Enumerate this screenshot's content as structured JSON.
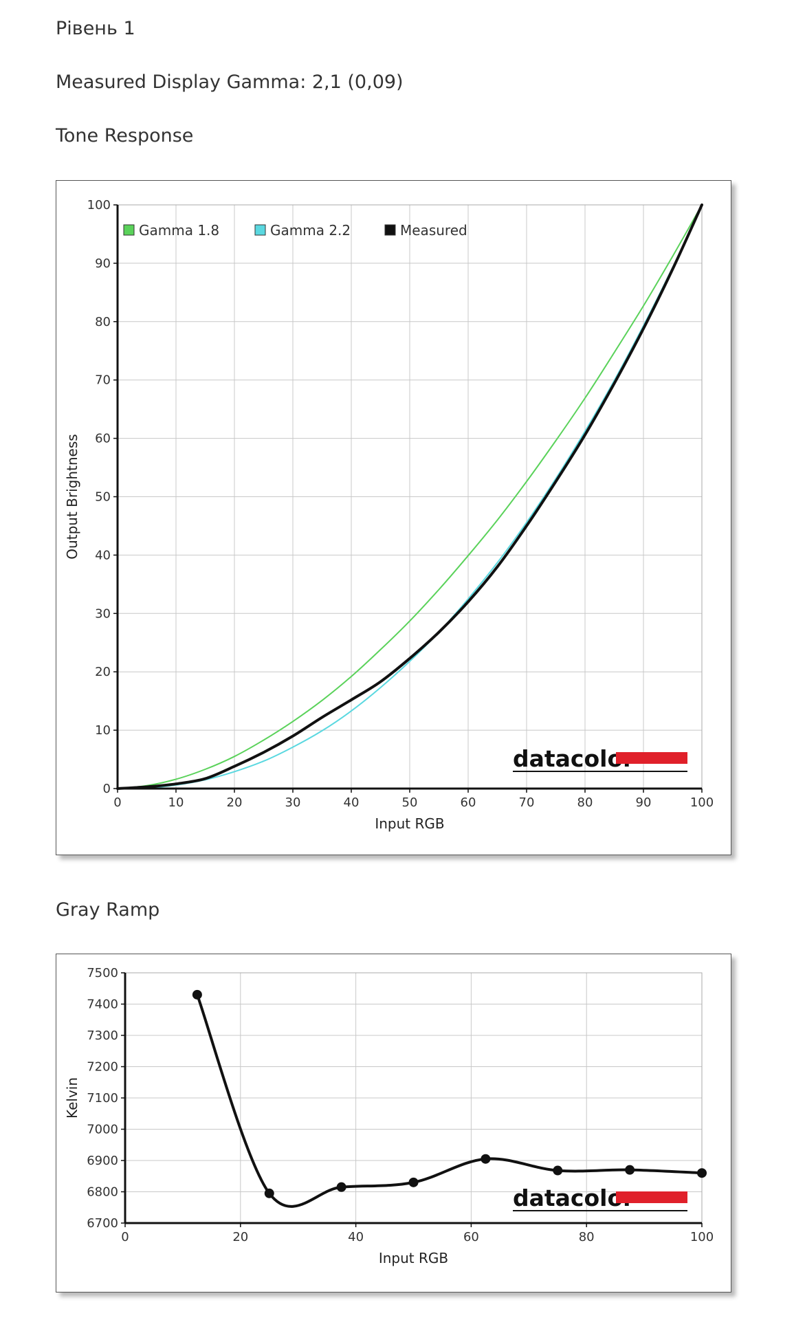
{
  "page": {
    "level_title": "Рівень 1",
    "gamma_text": "Measured Display Gamma: 2,1 (0,09)",
    "tone_heading": "Tone Response",
    "gray_heading": "Gray Ramp"
  },
  "logo": {
    "text": "datacolor",
    "bar_color": "#e0202a"
  },
  "chart_data": [
    {
      "type": "line",
      "xlabel": "Input RGB",
      "ylabel": "Output Brightness",
      "xlim": [
        0,
        100
      ],
      "ylim": [
        0,
        100
      ],
      "x_ticks": [
        0,
        10,
        20,
        30,
        40,
        50,
        60,
        70,
        80,
        90,
        100
      ],
      "y_ticks": [
        0,
        10,
        20,
        30,
        40,
        50,
        60,
        70,
        80,
        90,
        100
      ],
      "grid": true,
      "legend_position": "top-left",
      "series": [
        {
          "name": "Gamma 1.8",
          "color": "#5ad25a",
          "x": [
            0,
            5,
            10,
            15,
            20,
            25,
            30,
            35,
            40,
            45,
            50,
            55,
            60,
            65,
            70,
            75,
            80,
            85,
            90,
            95,
            100
          ],
          "y": [
            0,
            0.5,
            1.6,
            3.3,
            5.5,
            8.3,
            11.5,
            15.1,
            19.2,
            23.8,
            28.7,
            34.1,
            39.9,
            46.0,
            52.6,
            59.6,
            66.9,
            74.7,
            82.7,
            91.2,
            100
          ]
        },
        {
          "name": "Gamma 2.2",
          "color": "#5ad8e0",
          "x": [
            0,
            5,
            10,
            15,
            20,
            25,
            30,
            35,
            40,
            45,
            50,
            55,
            60,
            65,
            70,
            75,
            80,
            85,
            90,
            95,
            100
          ],
          "y": [
            0,
            0.1,
            0.6,
            1.5,
            2.9,
            4.7,
            7.1,
            9.9,
            13.3,
            17.3,
            21.8,
            26.8,
            32.5,
            38.7,
            45.6,
            53.1,
            61.2,
            69.9,
            79.3,
            89.3,
            100
          ]
        },
        {
          "name": "Measured",
          "color": "#111111",
          "x": [
            0,
            5,
            10,
            15,
            20,
            25,
            30,
            35,
            40,
            45,
            50,
            55,
            60,
            65,
            70,
            75,
            80,
            85,
            90,
            95,
            100
          ],
          "y": [
            0,
            0.3,
            0.8,
            1.7,
            3.8,
            6.2,
            9.0,
            12.2,
            15.2,
            18.3,
            22.3,
            26.8,
            32.0,
            38.0,
            45.0,
            52.6,
            60.6,
            69.4,
            78.8,
            89.0,
            100
          ]
        }
      ]
    },
    {
      "type": "line",
      "xlabel": "Input RGB",
      "ylabel": "Kelvin",
      "xlim": [
        0,
        100
      ],
      "ylim": [
        6700,
        7500
      ],
      "x_ticks": [
        0,
        20,
        40,
        60,
        80,
        100
      ],
      "y_ticks": [
        6700,
        6800,
        6900,
        7000,
        7100,
        7200,
        7300,
        7400,
        7500
      ],
      "grid": true,
      "series": [
        {
          "color": "#111111",
          "markers": true,
          "x": [
            12.5,
            25,
            37.5,
            50,
            62.5,
            75,
            87.5,
            100
          ],
          "y": [
            7430,
            6795,
            6815,
            6830,
            6905,
            6868,
            6870,
            6860
          ]
        }
      ]
    }
  ]
}
